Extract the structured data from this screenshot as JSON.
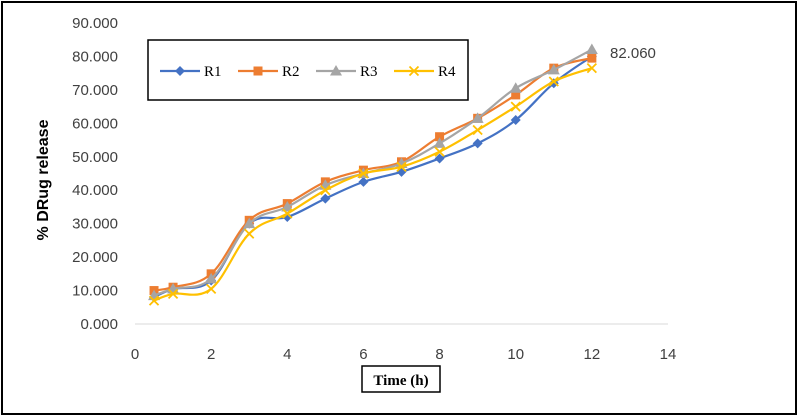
{
  "chart_data": {
    "type": "line",
    "title": "",
    "xlabel": "Time (h)",
    "ylabel": "% DRug release",
    "xlim": [
      0,
      14
    ],
    "ylim": [
      0,
      90
    ],
    "x_ticks": [
      "0",
      "2",
      "4",
      "6",
      "8",
      "10",
      "12",
      "14"
    ],
    "y_ticks": [
      "0.000",
      "10.000",
      "20.000",
      "30.000",
      "40.000",
      "50.000",
      "60.000",
      "70.000",
      "80.000",
      "90.000"
    ],
    "grid": false,
    "legend_position": "top-left",
    "annotation": {
      "text": "82.060",
      "x": 12,
      "y": 82.06
    },
    "x": [
      0.5,
      1,
      2,
      3,
      4,
      5,
      6,
      7,
      8,
      9,
      10,
      11,
      12
    ],
    "series": [
      {
        "name": "R1",
        "color": "#4472C4",
        "marker": "diamond",
        "values": [
          8.0,
          10.5,
          13.0,
          30.0,
          32.0,
          37.5,
          42.5,
          45.5,
          49.5,
          54.0,
          61.0,
          72.0,
          80.0
        ]
      },
      {
        "name": "R2",
        "color": "#ED7D31",
        "marker": "square",
        "values": [
          10.0,
          11.0,
          15.0,
          31.0,
          36.0,
          42.5,
          46.0,
          48.5,
          56.0,
          61.5,
          68.5,
          76.5,
          79.5
        ]
      },
      {
        "name": "R3",
        "color": "#A5A5A5",
        "marker": "triangle",
        "values": [
          8.5,
          10.5,
          13.5,
          30.0,
          35.0,
          41.5,
          45.0,
          48.0,
          54.0,
          61.5,
          70.5,
          76.0,
          82.06
        ]
      },
      {
        "name": "R4",
        "color": "#FFC000",
        "marker": "x",
        "values": [
          7.0,
          9.0,
          10.5,
          27.0,
          33.0,
          40.0,
          45.0,
          47.0,
          51.5,
          58.0,
          65.0,
          72.5,
          76.5
        ]
      }
    ]
  }
}
